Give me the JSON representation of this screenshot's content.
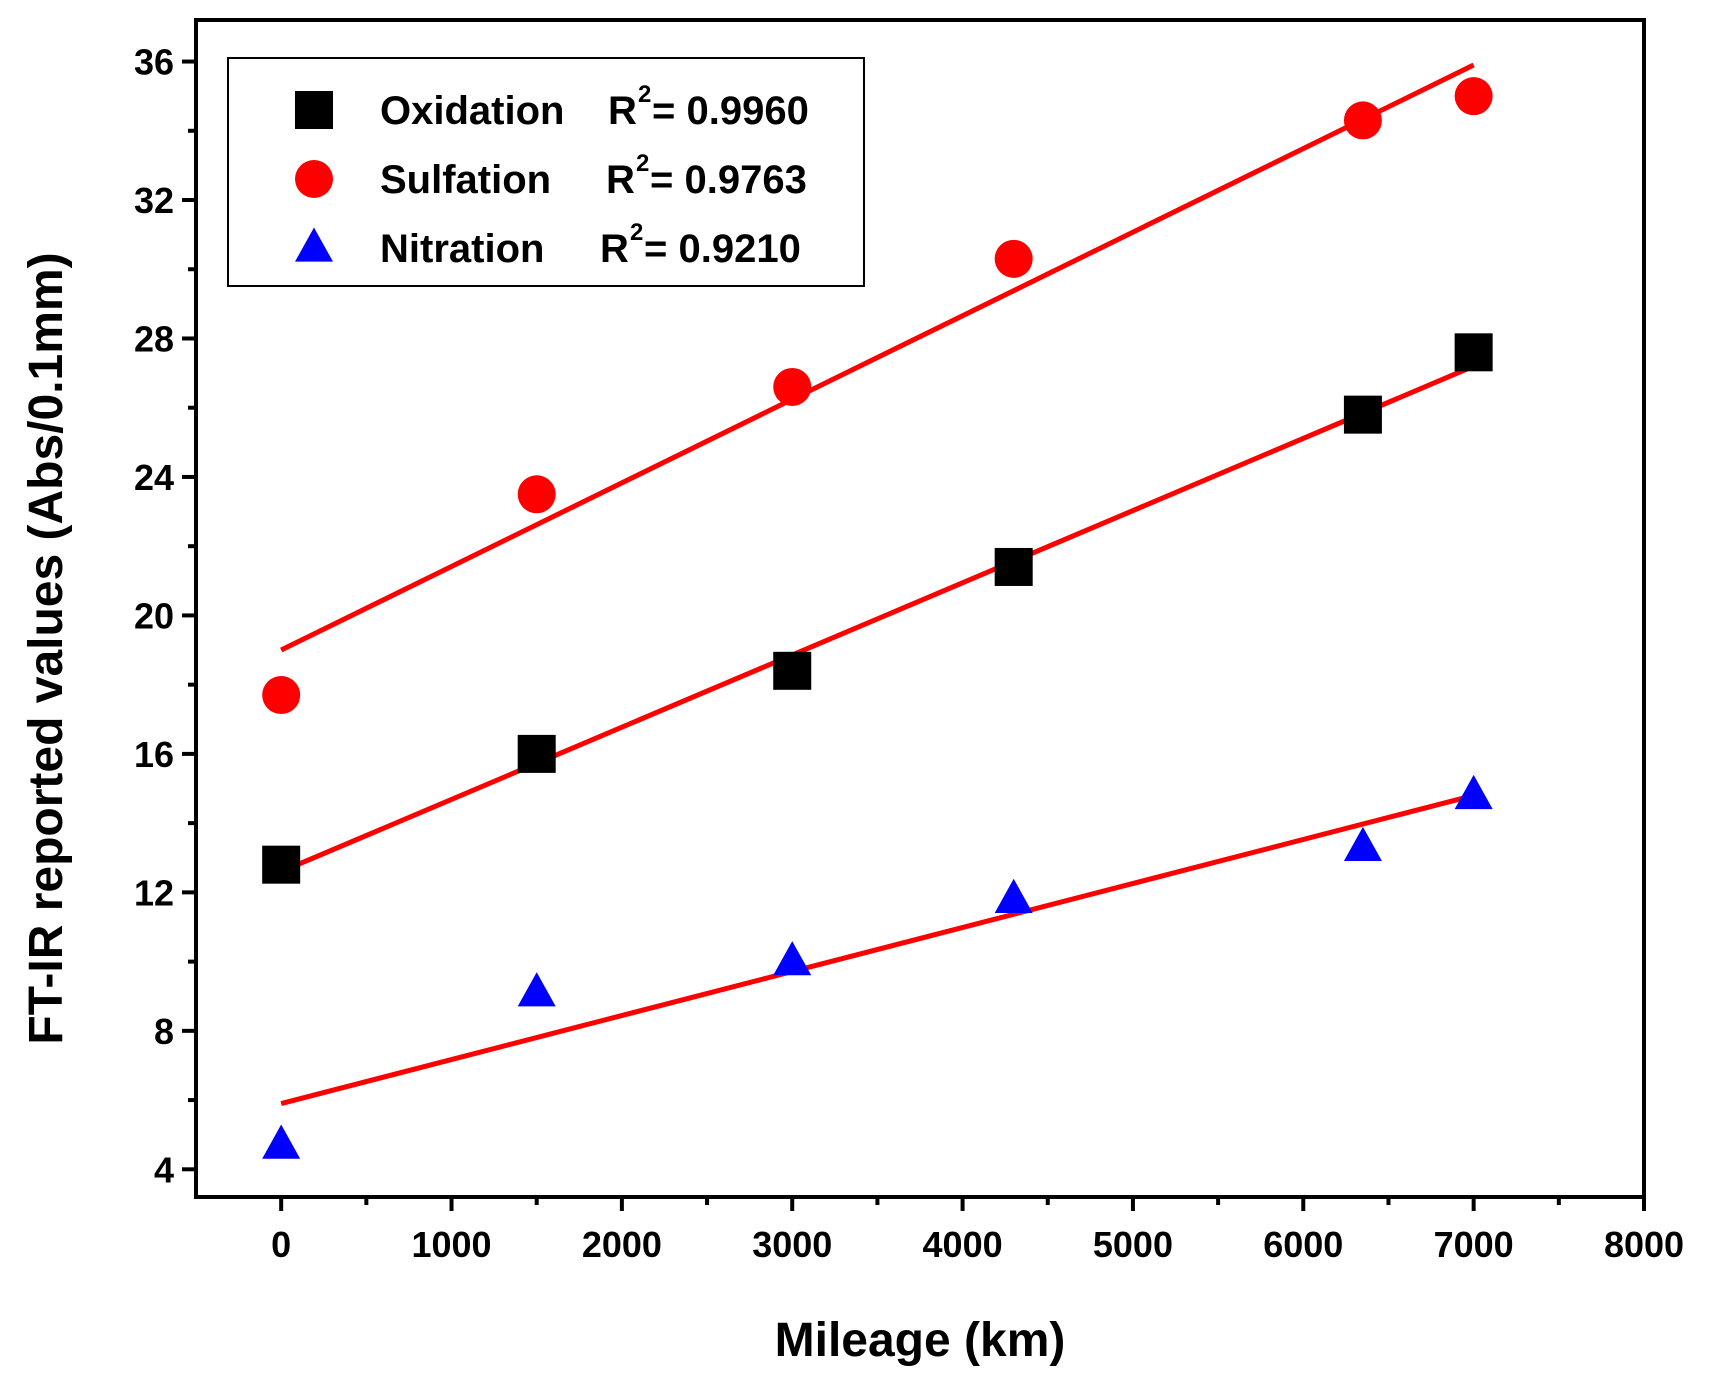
{
  "chart_data": {
    "type": "scatter",
    "xlabel": "Mileage (km)",
    "ylabel": "FT-IR reported values (Abs/0.1mm)",
    "xlim": [
      -500,
      8000
    ],
    "ylim": [
      3.2,
      37.2
    ],
    "x_ticks": [
      0,
      1000,
      2000,
      3000,
      4000,
      5000,
      6000,
      7000,
      8000
    ],
    "x_minor_ticks": [
      500,
      1500,
      2500,
      3500,
      4500,
      5500,
      6500,
      7500
    ],
    "y_ticks": [
      4,
      8,
      12,
      16,
      20,
      24,
      28,
      32,
      36
    ],
    "y_minor_ticks": [
      6,
      10,
      14,
      18,
      22,
      26,
      30,
      34
    ],
    "grid": false,
    "legend_position": "top-left",
    "series": [
      {
        "name": "Oxidation",
        "r2_prefix": "R",
        "r2_sup": "2",
        "r2_value": "= 0.9960",
        "marker": "square",
        "color": "#000000",
        "x": [
          0,
          1500,
          3000,
          4300,
          6350,
          7000
        ],
        "y": [
          12.8,
          16.0,
          18.4,
          21.4,
          25.8,
          27.6
        ],
        "fit": {
          "x": [
            0,
            7000
          ],
          "y": [
            12.6,
            27.2
          ],
          "color": "#ff0000"
        }
      },
      {
        "name": "Sulfation",
        "r2_prefix": "R",
        "r2_sup": "2",
        "r2_value": "= 0.9763",
        "marker": "circle",
        "color": "#ff0000",
        "x": [
          0,
          1500,
          3000,
          4300,
          6350,
          7000
        ],
        "y": [
          17.7,
          23.5,
          26.6,
          30.3,
          34.3,
          35.0
        ],
        "fit": {
          "x": [
            0,
            7000
          ],
          "y": [
            19.0,
            35.9
          ],
          "color": "#ff0000"
        }
      },
      {
        "name": "Nitration",
        "r2_prefix": "R",
        "r2_sup": "2",
        "r2_value": "= 0.9210",
        "marker": "triangle",
        "color": "#0000ff",
        "x": [
          0,
          1500,
          3000,
          4300,
          6350,
          7000
        ],
        "y": [
          4.7,
          9.1,
          10.0,
          11.8,
          13.3,
          14.8
        ],
        "fit": {
          "x": [
            0,
            7000
          ],
          "y": [
            5.9,
            14.8
          ],
          "color": "#ff0000"
        }
      }
    ]
  }
}
